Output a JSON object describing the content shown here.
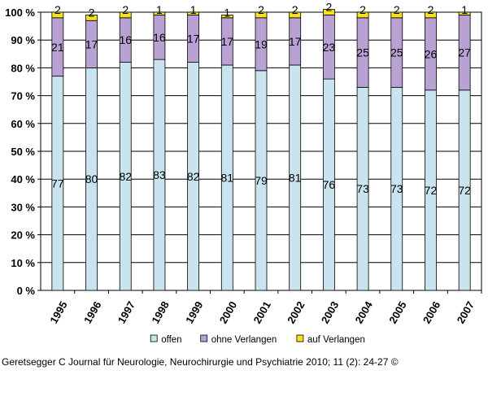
{
  "chart_data": {
    "type": "bar",
    "stacked": true,
    "percent": true,
    "categories": [
      "1995",
      "1996",
      "1997",
      "1998",
      "1999",
      "2000",
      "2001",
      "2002",
      "2003",
      "2004",
      "2005",
      "2006",
      "2007"
    ],
    "series": [
      {
        "name": "offen",
        "color": "#c9e4ee",
        "values": [
          77,
          80,
          82,
          83,
          82,
          81,
          79,
          81,
          76,
          73,
          73,
          72,
          72
        ]
      },
      {
        "name": "ohne Verlangen",
        "color": "#b9a2d3",
        "values": [
          21,
          17,
          16,
          16,
          17,
          17,
          19,
          17,
          23,
          25,
          25,
          26,
          27
        ]
      },
      {
        "name": "auf Verlangen",
        "color": "#f7e21a",
        "values": [
          2,
          2,
          2,
          1,
          1,
          1,
          2,
          2,
          2,
          2,
          2,
          2,
          1
        ]
      }
    ],
    "ylim": [
      0,
      100
    ],
    "yticks": [
      "0 %",
      "10 %",
      "20 %",
      "30 %",
      "40 %",
      "50 %",
      "60 %",
      "70 %",
      "80 %",
      "90 %",
      "100 %"
    ],
    "grid": true,
    "legend": "bottom",
    "title": "",
    "xlabel": "",
    "ylabel": ""
  },
  "caption": "Geretsegger C Journal für Neurologie, Neurochirurgie und Psychiatrie 2010; 11 (2): 24-27 ©"
}
